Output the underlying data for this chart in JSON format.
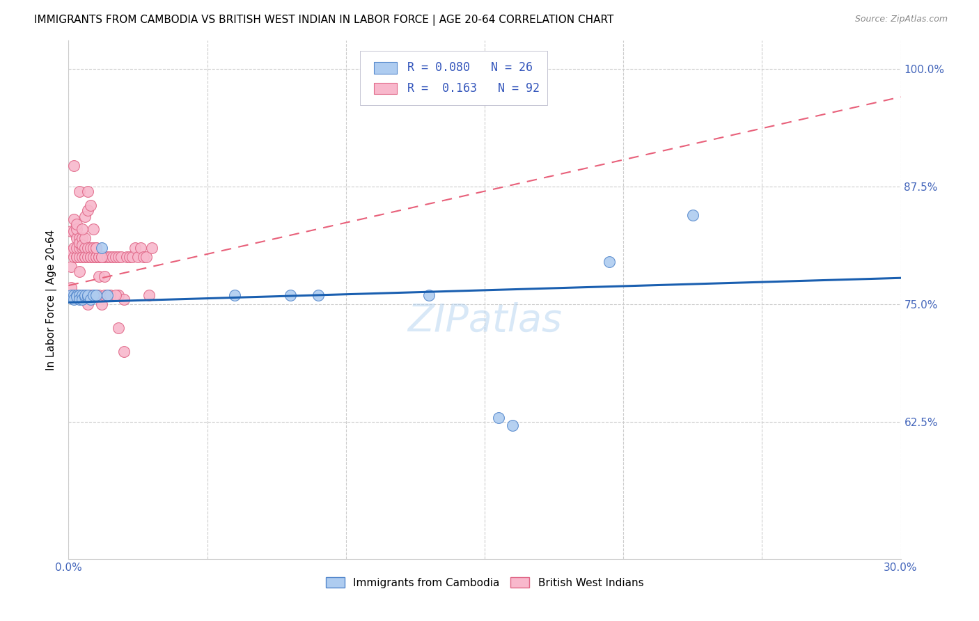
{
  "title": "IMMIGRANTS FROM CAMBODIA VS BRITISH WEST INDIAN IN LABOR FORCE | AGE 20-64 CORRELATION CHART",
  "source": "Source: ZipAtlas.com",
  "ylabel": "In Labor Force | Age 20-64",
  "xlim": [
    0.0,
    0.3
  ],
  "ylim": [
    0.48,
    1.03
  ],
  "ytick_positions": [
    0.625,
    0.75,
    0.875,
    1.0
  ],
  "ytick_labels": [
    "62.5%",
    "75.0%",
    "87.5%",
    "100.0%"
  ],
  "cambodia_color": "#aeccf0",
  "cambodia_edge": "#5588cc",
  "bwi_color": "#f8b8cc",
  "bwi_edge": "#e06888",
  "trend_blue": "#1a5fb0",
  "trend_pink": "#e8607a",
  "R_cambodia": 0.08,
  "N_cambodia": 26,
  "R_bwi": 0.163,
  "N_bwi": 92,
  "legend_label_cambodia": "Immigrants from Cambodia",
  "legend_label_bwi": "British West Indians",
  "watermark": "ZIPatlas",
  "cambodia_x": [
    0.001,
    0.002,
    0.002,
    0.003,
    0.003,
    0.004,
    0.004,
    0.005,
    0.005,
    0.006,
    0.006,
    0.007,
    0.007,
    0.008,
    0.009,
    0.01,
    0.012,
    0.014,
    0.06,
    0.08,
    0.09,
    0.13,
    0.155,
    0.16,
    0.195,
    0.225
  ],
  "cambodia_y": [
    0.76,
    0.76,
    0.755,
    0.76,
    0.758,
    0.76,
    0.755,
    0.76,
    0.755,
    0.758,
    0.76,
    0.758,
    0.76,
    0.755,
    0.76,
    0.76,
    0.81,
    0.76,
    0.76,
    0.76,
    0.76,
    0.76,
    0.63,
    0.622,
    0.795,
    0.845
  ],
  "bwi_x": [
    0.001,
    0.001,
    0.001,
    0.001,
    0.002,
    0.002,
    0.002,
    0.002,
    0.002,
    0.003,
    0.003,
    0.003,
    0.003,
    0.003,
    0.003,
    0.003,
    0.004,
    0.004,
    0.004,
    0.004,
    0.004,
    0.005,
    0.005,
    0.005,
    0.005,
    0.005,
    0.006,
    0.006,
    0.006,
    0.006,
    0.006,
    0.007,
    0.007,
    0.007,
    0.007,
    0.008,
    0.008,
    0.008,
    0.008,
    0.009,
    0.009,
    0.009,
    0.01,
    0.01,
    0.01,
    0.011,
    0.011,
    0.011,
    0.012,
    0.012,
    0.013,
    0.013,
    0.014,
    0.014,
    0.015,
    0.015,
    0.016,
    0.017,
    0.018,
    0.018,
    0.019,
    0.02,
    0.021,
    0.022,
    0.023,
    0.024,
    0.025,
    0.026,
    0.027,
    0.028,
    0.029,
    0.03,
    0.002,
    0.003,
    0.003,
    0.004,
    0.004,
    0.005,
    0.006,
    0.007,
    0.007,
    0.008,
    0.009,
    0.01,
    0.01,
    0.011,
    0.012,
    0.013,
    0.015,
    0.017,
    0.018,
    0.02
  ],
  "bwi_y": [
    0.828,
    0.79,
    0.807,
    0.768,
    0.828,
    0.84,
    0.8,
    0.81,
    0.76,
    0.8,
    0.76,
    0.8,
    0.81,
    0.82,
    0.83,
    0.76,
    0.8,
    0.81,
    0.82,
    0.815,
    0.76,
    0.81,
    0.82,
    0.8,
    0.813,
    0.76,
    0.8,
    0.81,
    0.82,
    0.76,
    0.8,
    0.75,
    0.76,
    0.8,
    0.81,
    0.8,
    0.81,
    0.76,
    0.8,
    0.8,
    0.81,
    0.76,
    0.8,
    0.76,
    0.8,
    0.8,
    0.76,
    0.8,
    0.75,
    0.8,
    0.8,
    0.76,
    0.8,
    0.76,
    0.8,
    0.76,
    0.8,
    0.8,
    0.8,
    0.76,
    0.8,
    0.755,
    0.8,
    0.8,
    0.8,
    0.81,
    0.8,
    0.81,
    0.8,
    0.8,
    0.76,
    0.81,
    0.897,
    0.835,
    0.76,
    0.785,
    0.87,
    0.83,
    0.843,
    0.85,
    0.87,
    0.855,
    0.83,
    0.81,
    0.81,
    0.78,
    0.8,
    0.78,
    0.76,
    0.76,
    0.725,
    0.7
  ]
}
